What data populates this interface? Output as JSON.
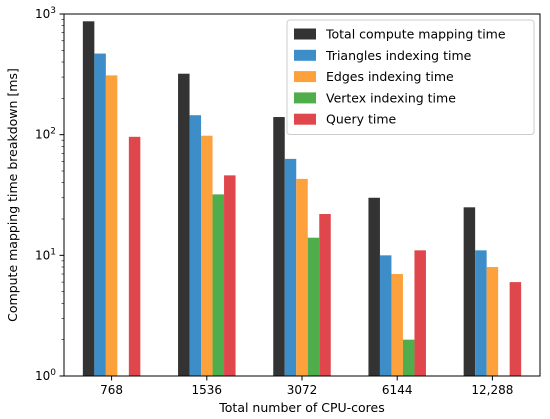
{
  "chart_data": {
    "type": "bar",
    "scale": "log",
    "xlabel": "Total number of CPU-cores",
    "ylabel": "Compute mapping time breakdown [ms]",
    "categories": [
      "768",
      "1536",
      "3072",
      "6144",
      "12,288"
    ],
    "ylim": [
      1,
      1000
    ],
    "y_ticks": [
      {
        "value": 1,
        "base": "10",
        "exp": "0"
      },
      {
        "value": 10,
        "base": "10",
        "exp": "1"
      },
      {
        "value": 100,
        "base": "10",
        "exp": "2"
      },
      {
        "value": 1000,
        "base": "10",
        "exp": "3"
      }
    ],
    "legend_position": "top-right",
    "series": [
      {
        "name": "Total compute mapping time",
        "color": "#333333",
        "values": [
          870,
          320,
          140,
          30,
          25
        ]
      },
      {
        "name": "Triangles indexing time",
        "color": "#3d8ec8",
        "values": [
          470,
          145,
          63,
          10,
          11
        ]
      },
      {
        "name": "Edges indexing time",
        "color": "#fda13c",
        "values": [
          310,
          98,
          43,
          7,
          8
        ]
      },
      {
        "name": "Vertex indexing time",
        "color": "#4fae4b",
        "values": [
          null,
          32,
          14,
          2,
          null
        ]
      },
      {
        "name": "Query time",
        "color": "#e0474c",
        "values": [
          96,
          46,
          22,
          11,
          6
        ]
      }
    ]
  }
}
